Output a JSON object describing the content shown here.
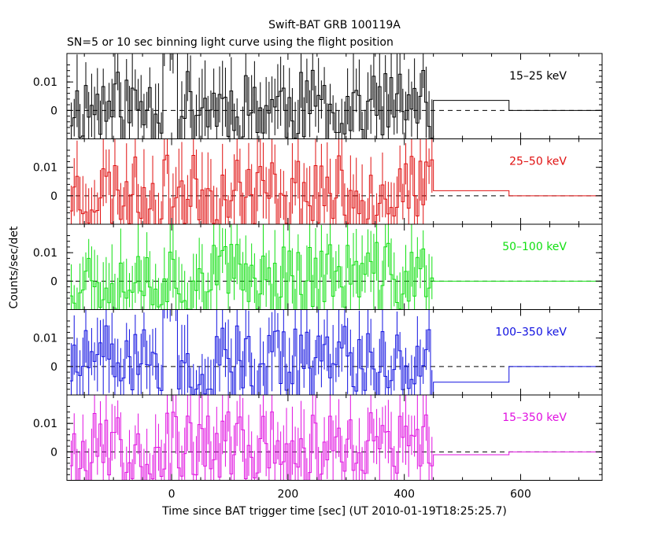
{
  "chart_data": {
    "type": "line",
    "title": "Swift-BAT GRB 100119A",
    "subtitle": "SN=5 or 10 sec binning light curve using the flight position",
    "xlabel": "Time since BAT trigger time [sec] (UT 2010-01-19T18:25:25.7)",
    "ylabel": "Counts/sec/det",
    "xlim": [
      -180,
      740
    ],
    "ylim": [
      -0.01,
      0.02
    ],
    "x_ticks": [
      0,
      200,
      400,
      600
    ],
    "x_tick_labels": [
      "0",
      "200",
      "400",
      "600"
    ],
    "y_ticks": [
      0,
      0.01
    ],
    "y_tick_labels": [
      "0",
      "0.01"
    ],
    "panels": [
      {
        "name": "15-25 keV",
        "label": "15–25 keV",
        "color": "#000000",
        "seed": 11,
        "spike": true,
        "tail": [
          {
            "x0": 450,
            "x1": 580,
            "y": 0.0035
          },
          {
            "x0": 580,
            "x1": 740,
            "y": 0.0
          }
        ]
      },
      {
        "name": "25-50 keV",
        "label": "25–50 keV",
        "color": "#e01010",
        "seed": 23,
        "spike": false,
        "tail": [
          {
            "x0": 450,
            "x1": 580,
            "y": 0.0018
          },
          {
            "x0": 580,
            "x1": 740,
            "y": 0.0
          }
        ]
      },
      {
        "name": "50-100 keV",
        "label": "50–100 keV",
        "color": "#10e010",
        "seed": 37,
        "spike": false,
        "tail": [
          {
            "x0": 450,
            "x1": 580,
            "y": 0.0
          },
          {
            "x0": 580,
            "x1": 740,
            "y": 0.0
          }
        ]
      },
      {
        "name": "100-350 keV",
        "label": "100–350 keV",
        "color": "#1010e0",
        "seed": 51,
        "spike": true,
        "tail": [
          {
            "x0": 450,
            "x1": 580,
            "y": -0.0055
          },
          {
            "x0": 580,
            "x1": 740,
            "y": 0.0
          }
        ]
      },
      {
        "name": "15-350 keV",
        "label": "15–350 keV",
        "color": "#e010e0",
        "seed": 67,
        "spike": false,
        "tail": [
          {
            "x0": 450,
            "x1": 580,
            "y": -0.001
          },
          {
            "x0": 580,
            "x1": 740,
            "y": 0.0
          }
        ]
      }
    ]
  }
}
